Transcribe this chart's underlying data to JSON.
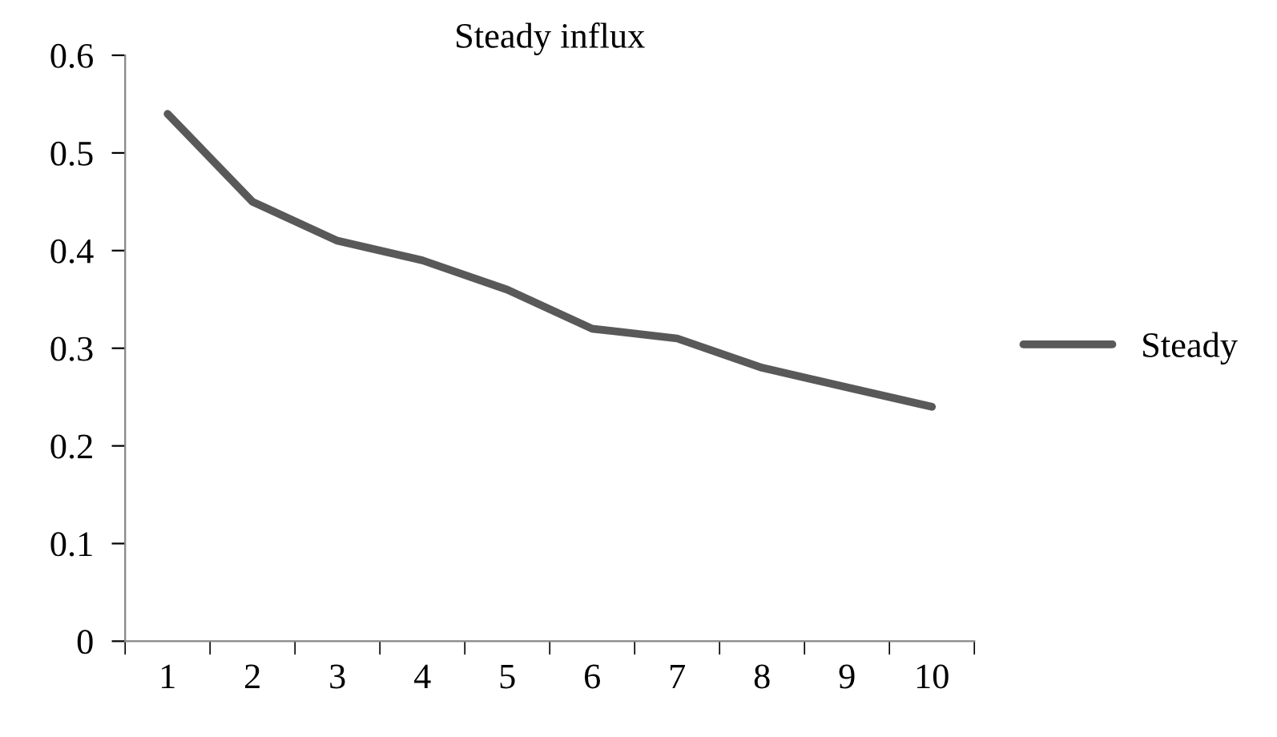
{
  "chart_data": {
    "type": "line",
    "title": "Steady influx",
    "categories": [
      "1",
      "2",
      "3",
      "4",
      "5",
      "6",
      "7",
      "8",
      "9",
      "10"
    ],
    "series": [
      {
        "name": "Steady",
        "color": "#595959",
        "values": [
          0.54,
          0.45,
          0.41,
          0.39,
          0.36,
          0.32,
          0.31,
          0.28,
          0.26,
          0.24
        ]
      }
    ],
    "ylim": [
      0,
      0.6
    ],
    "yticks": [
      0,
      0.1,
      0.2,
      0.3,
      0.4,
      0.5,
      0.6
    ],
    "grid": false,
    "legend": "right",
    "marker": "none",
    "line_style": "solid"
  }
}
